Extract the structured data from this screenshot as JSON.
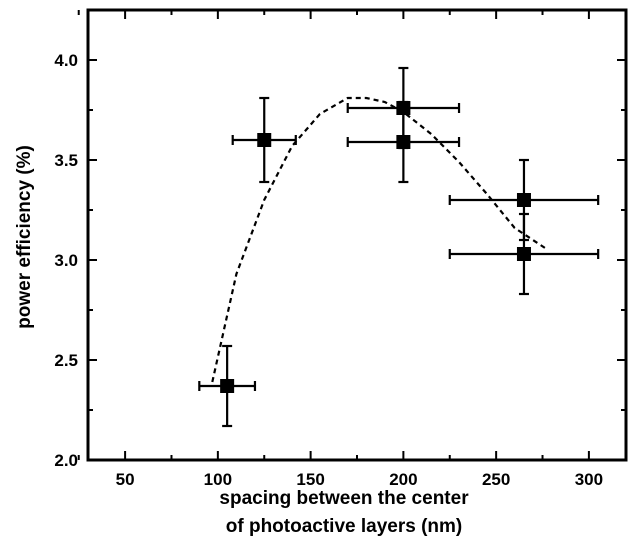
{
  "chart_data": {
    "type": "scatter",
    "xlabel": "spacing between the center",
    "xlabel_line2": "of photoactive layers (nm)",
    "ylabel": "power efficiency (%)",
    "xlim": [
      30,
      320
    ],
    "ylim": [
      2.0,
      4.25
    ],
    "xticks": [
      50,
      100,
      150,
      200,
      250,
      300
    ],
    "yticks": [
      2.0,
      2.5,
      3.0,
      3.5,
      4.0
    ],
    "ytick_labels": [
      "2.0",
      "2.5",
      "3.0",
      "3.5",
      "4.0"
    ],
    "grid": false,
    "series": [
      {
        "marker": "square",
        "points": [
          {
            "x": 105,
            "y": 2.37,
            "xerr": 15,
            "yerr": 0.2
          },
          {
            "x": 125,
            "y": 3.6,
            "xerr": 17,
            "yerr": 0.21
          },
          {
            "x": 200,
            "y": 3.76,
            "xerr": 30,
            "yerr": 0.2
          },
          {
            "x": 200,
            "y": 3.59,
            "xerr": 30,
            "yerr": 0.2
          },
          {
            "x": 265,
            "y": 3.3,
            "xerr": 40,
            "yerr": 0.2
          },
          {
            "x": 265,
            "y": 3.03,
            "xerr": 40,
            "yerr": 0.2
          }
        ]
      },
      {
        "style": "dashed",
        "fit": "quadratic",
        "x": [
          97,
          110,
          125,
          140,
          155,
          170,
          180,
          190,
          200,
          215,
          230,
          245,
          260,
          278
        ],
        "y": [
          2.39,
          2.93,
          3.3,
          3.57,
          3.73,
          3.81,
          3.81,
          3.79,
          3.74,
          3.63,
          3.49,
          3.33,
          3.16,
          3.05
        ]
      }
    ]
  }
}
